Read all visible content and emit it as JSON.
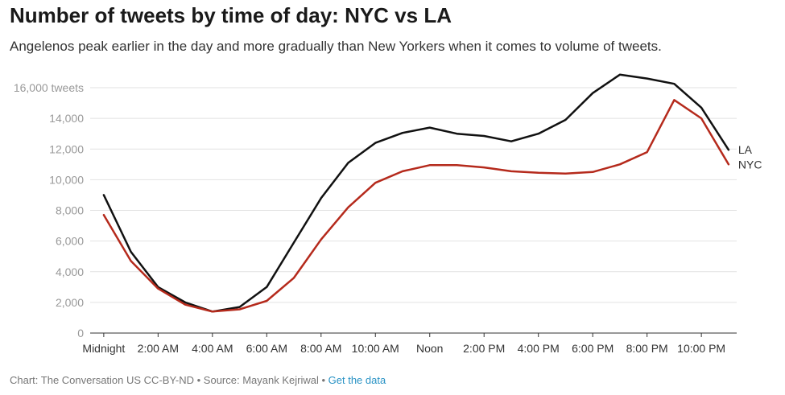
{
  "title": "Number of tweets by time of day: NYC vs LA",
  "subtitle": "Angelenos peak earlier in the day and more gradually than New Yorkers when it comes to volume of tweets.",
  "footer": {
    "credit": "Chart: The Conversation US CC-BY-ND • Source: Mayank Kejriwal • ",
    "link_label": "Get the data",
    "link_color": "#2a93c5"
  },
  "chart_data": {
    "type": "line",
    "x": [
      0,
      1,
      2,
      3,
      4,
      5,
      6,
      7,
      8,
      9,
      10,
      11,
      12,
      13,
      14,
      15,
      16,
      17,
      18,
      19,
      20,
      21,
      22,
      23
    ],
    "x_ticks": [
      {
        "x": 0,
        "label": "Midnight"
      },
      {
        "x": 2,
        "label": "2:00 AM"
      },
      {
        "x": 4,
        "label": "4:00 AM"
      },
      {
        "x": 6,
        "label": "6:00 AM"
      },
      {
        "x": 8,
        "label": "8:00 AM"
      },
      {
        "x": 10,
        "label": "10:00 AM"
      },
      {
        "x": 12,
        "label": "Noon"
      },
      {
        "x": 14,
        "label": "2:00 PM"
      },
      {
        "x": 16,
        "label": "4:00 PM"
      },
      {
        "x": 18,
        "label": "6:00 PM"
      },
      {
        "x": 20,
        "label": "8:00 PM"
      },
      {
        "x": 22,
        "label": "10:00 PM"
      }
    ],
    "y_ticks": [
      {
        "y": 0,
        "label": "0"
      },
      {
        "y": 2000,
        "label": "2,000"
      },
      {
        "y": 4000,
        "label": "4,000"
      },
      {
        "y": 6000,
        "label": "6,000"
      },
      {
        "y": 8000,
        "label": "8,000"
      },
      {
        "y": 10000,
        "label": "10,000"
      },
      {
        "y": 12000,
        "label": "12,000"
      },
      {
        "y": 14000,
        "label": "14,000"
      },
      {
        "y": 16000,
        "label": "16,000 tweets"
      }
    ],
    "xlim": [
      -0.5,
      23.3
    ],
    "ylim": [
      0,
      16000
    ],
    "grid": true,
    "series": [
      {
        "name": "LA",
        "color": "#111111",
        "values": [
          9000,
          5300,
          3000,
          2000,
          1400,
          1700,
          3000,
          5900,
          8800,
          11100,
          12400,
          13050,
          13400,
          13000,
          12850,
          12500,
          13000,
          13900,
          15650,
          16850,
          16600,
          16250,
          14700,
          11950
        ]
      },
      {
        "name": "NYC",
        "color": "#b52a1c",
        "values": [
          7700,
          4700,
          2900,
          1850,
          1400,
          1550,
          2100,
          3600,
          6100,
          8200,
          9800,
          10550,
          10950,
          10950,
          10800,
          10550,
          10450,
          10400,
          10500,
          11000,
          11800,
          15200,
          14000,
          11000
        ]
      }
    ]
  }
}
